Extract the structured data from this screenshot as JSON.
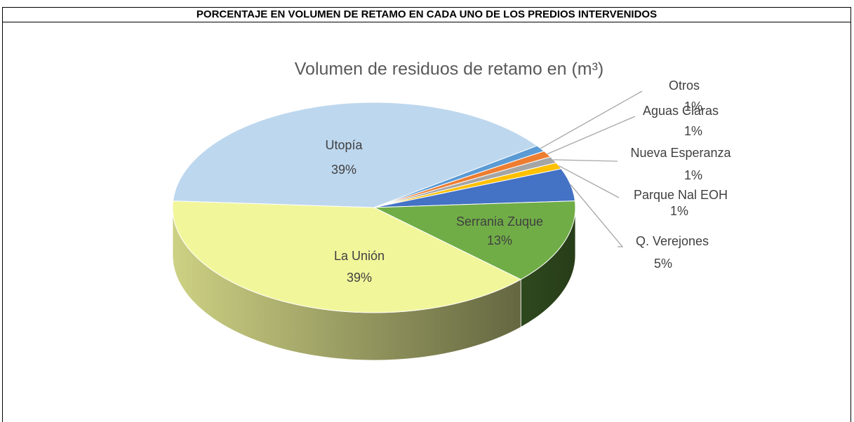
{
  "header": "PORCENTAJE EN VOLUMEN DE RETAMO EN CADA UNO DE LOS PREDIOS INTERVENIDOS",
  "chart_data": {
    "type": "pie",
    "title": "Volumen de residuos de retamo en (m³)",
    "categories": [
      "Otros",
      "Aguas Claras",
      "Nueva Esperanza",
      "Parque Nal EOH",
      "Q. Verejones",
      "Serrania Zuque",
      "La Unión",
      "Utopía"
    ],
    "values": [
      1,
      1,
      1,
      1,
      5,
      13,
      39,
      39
    ],
    "value_labels": [
      "1%",
      "1%",
      "1%",
      "1%",
      "5%",
      "13%",
      "39%",
      "39%"
    ],
    "colors": [
      "#5b9bd5",
      "#ed7d31",
      "#a5a5a5",
      "#ffc000",
      "#4472c4",
      "#70ad47",
      "#f1f69a",
      "#bdd7ee"
    ]
  }
}
